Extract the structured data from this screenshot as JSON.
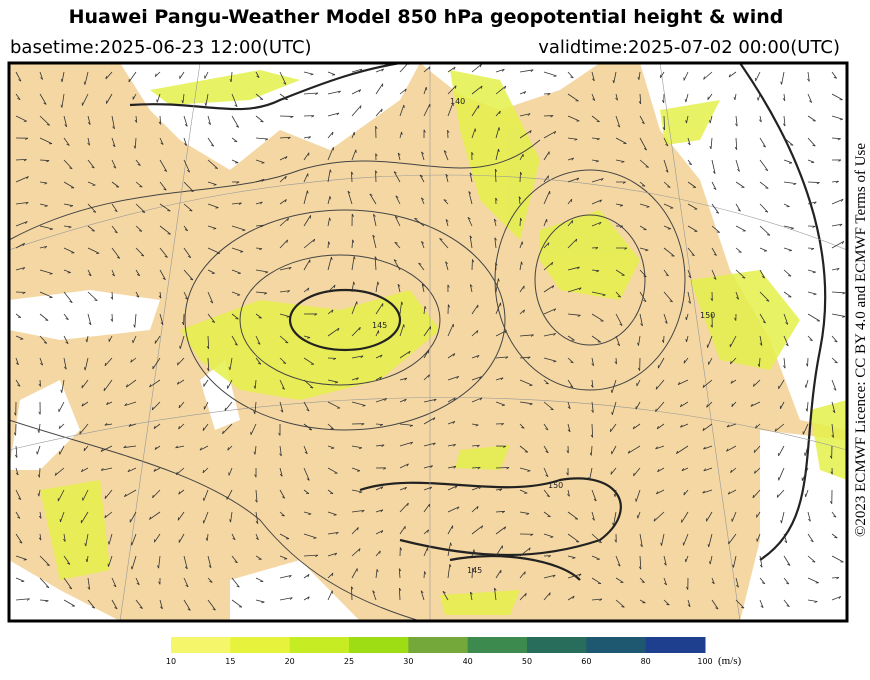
{
  "header": {
    "title": "Huawei Pangu-Weather Model 850 hPa geopotential height & wind",
    "basetime": "basetime:2025-06-23 12:00(UTC)",
    "validtime": "validtime:2025-07-02 00:00(UTC)"
  },
  "map": {
    "contour_labels": [
      "140",
      "145",
      "150",
      "150",
      "145"
    ]
  },
  "licence": "©2023 ECMWF Licence: CC BY 4.0 and ECMWF Terms of Use",
  "colorbar": {
    "ticks": [
      10,
      15,
      20,
      25,
      30,
      40,
      50,
      60,
      80,
      100
    ],
    "colors": [
      "#f6f66a",
      "#e6f23c",
      "#c6ec24",
      "#9edc14",
      "#74a83a",
      "#3c8a4e",
      "#286c5c",
      "#1e5870",
      "#1e3e8e",
      "#2a2ea4"
    ],
    "unit": "(m/s)"
  }
}
